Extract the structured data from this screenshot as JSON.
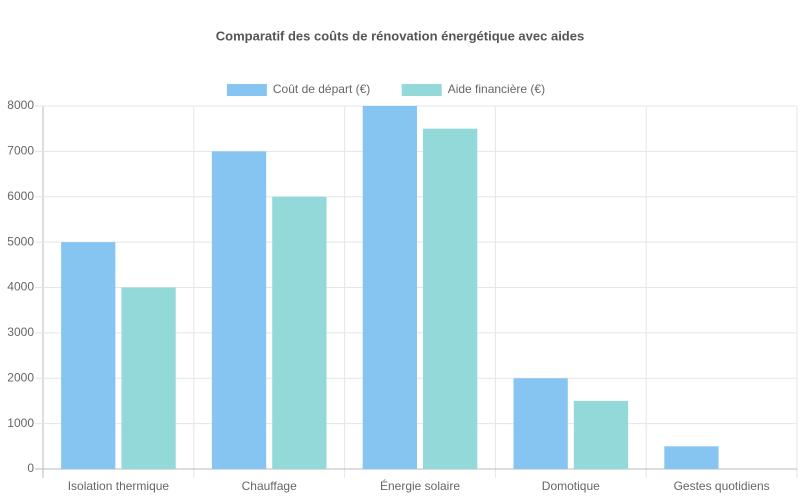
{
  "chart_data": {
    "type": "bar",
    "title": "Comparatif des coûts de rénovation énergétique avec aides",
    "categories": [
      "Isolation thermique",
      "Chauffage",
      "Énergie solaire",
      "Domotique",
      "Gestes quotidiens"
    ],
    "series": [
      {
        "name": "Coût de départ (€)",
        "color": "#86c5f1",
        "values": [
          5000,
          7000,
          8000,
          2000,
          500
        ]
      },
      {
        "name": "Aide financière (€)",
        "color": "#93d9d9",
        "values": [
          4000,
          6000,
          7500,
          1500,
          0
        ]
      }
    ],
    "ylim": [
      0,
      8000
    ],
    "yticks": [
      0,
      1000,
      2000,
      3000,
      4000,
      5000,
      6000,
      7000,
      8000
    ],
    "grid": true,
    "legend": "top"
  }
}
